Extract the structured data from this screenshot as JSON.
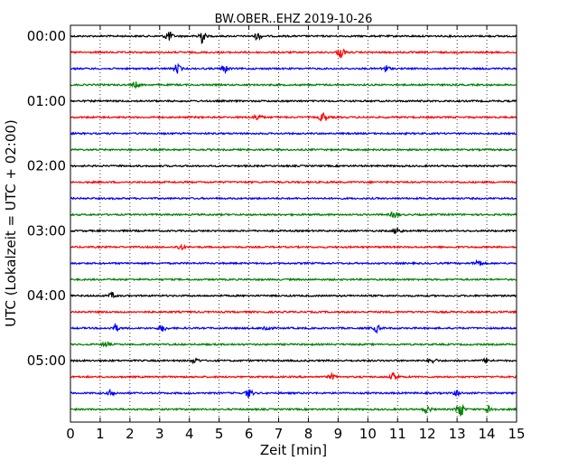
{
  "chart_data": {
    "type": "line",
    "title": "BW.OBER..EHZ 2019-10-26",
    "xlabel": "Zeit  [min]",
    "ylabel": "UTC (Lokalzeit = UTC + 02:00)",
    "xlim": [
      0,
      15
    ],
    "x_ticks": [
      0,
      1,
      2,
      3,
      4,
      5,
      6,
      7,
      8,
      9,
      10,
      11,
      12,
      13,
      14,
      15
    ],
    "x_grid": "dotted-vertical",
    "row_interval_minutes": 15,
    "y_tick_labels": [
      "00:00",
      "01:00",
      "02:00",
      "03:00",
      "04:00",
      "05:00"
    ],
    "row_colors": [
      "#000000",
      "#ff0000",
      "#0000ff",
      "#008000"
    ],
    "rows": [
      {
        "start": "00:00",
        "color": "#000000",
        "events": [
          {
            "t": 3.3,
            "amp": 0.6
          },
          {
            "t": 4.4,
            "amp": 0.9
          },
          {
            "t": 6.3,
            "amp": 0.4
          }
        ]
      },
      {
        "start": "00:15",
        "color": "#ff0000",
        "events": [
          {
            "t": 9.1,
            "amp": 0.6
          }
        ]
      },
      {
        "start": "00:30",
        "color": "#0000ff",
        "events": [
          {
            "t": 3.6,
            "amp": 0.5
          },
          {
            "t": 5.2,
            "amp": 0.4
          },
          {
            "t": 10.6,
            "amp": 0.4
          }
        ]
      },
      {
        "start": "00:45",
        "color": "#008000",
        "events": [
          {
            "t": 2.2,
            "amp": 0.3
          }
        ]
      },
      {
        "start": "01:00",
        "color": "#000000",
        "events": []
      },
      {
        "start": "01:15",
        "color": "#ff0000",
        "events": [
          {
            "t": 6.3,
            "amp": 0.4
          },
          {
            "t": 8.5,
            "amp": 0.6
          }
        ]
      },
      {
        "start": "01:30",
        "color": "#0000ff",
        "events": []
      },
      {
        "start": "01:45",
        "color": "#008000",
        "events": []
      },
      {
        "start": "02:00",
        "color": "#000000",
        "events": []
      },
      {
        "start": "02:15",
        "color": "#ff0000",
        "events": []
      },
      {
        "start": "02:30",
        "color": "#0000ff",
        "events": []
      },
      {
        "start": "02:45",
        "color": "#008000",
        "events": [
          {
            "t": 10.9,
            "amp": 0.4
          }
        ]
      },
      {
        "start": "03:00",
        "color": "#000000",
        "events": [
          {
            "t": 11.0,
            "amp": 0.4
          }
        ]
      },
      {
        "start": "03:15",
        "color": "#ff0000",
        "events": [
          {
            "t": 3.7,
            "amp": 0.3
          }
        ]
      },
      {
        "start": "03:30",
        "color": "#0000ff",
        "events": [
          {
            "t": 13.7,
            "amp": 0.4
          }
        ]
      },
      {
        "start": "03:45",
        "color": "#008000",
        "events": []
      },
      {
        "start": "04:00",
        "color": "#000000",
        "events": [
          {
            "t": 1.4,
            "amp": 0.3
          }
        ]
      },
      {
        "start": "04:15",
        "color": "#ff0000",
        "events": []
      },
      {
        "start": "04:30",
        "color": "#0000ff",
        "events": [
          {
            "t": 1.5,
            "amp": 0.4
          },
          {
            "t": 3.1,
            "amp": 0.4
          },
          {
            "t": 6.6,
            "amp": 0.4
          },
          {
            "t": 10.3,
            "amp": 0.4
          }
        ]
      },
      {
        "start": "04:45",
        "color": "#008000",
        "events": [
          {
            "t": 1.2,
            "amp": 0.3
          }
        ]
      },
      {
        "start": "05:00",
        "color": "#000000",
        "events": [
          {
            "t": 4.2,
            "amp": 0.3
          },
          {
            "t": 12.2,
            "amp": 0.3
          },
          {
            "t": 14.0,
            "amp": 0.3
          }
        ]
      },
      {
        "start": "05:15",
        "color": "#ff0000",
        "events": [
          {
            "t": 8.8,
            "amp": 0.3
          },
          {
            "t": 10.9,
            "amp": 0.5
          }
        ]
      },
      {
        "start": "05:30",
        "color": "#0000ff",
        "events": [
          {
            "t": 1.4,
            "amp": 0.4
          },
          {
            "t": 6.0,
            "amp": 0.5
          },
          {
            "t": 13.0,
            "amp": 0.3
          }
        ]
      },
      {
        "start": "05:45",
        "color": "#008000",
        "events": [
          {
            "t": 12.0,
            "amp": 0.4
          },
          {
            "t": 13.1,
            "amp": 1.0
          },
          {
            "t": 14.1,
            "amp": 0.5
          }
        ]
      }
    ]
  }
}
